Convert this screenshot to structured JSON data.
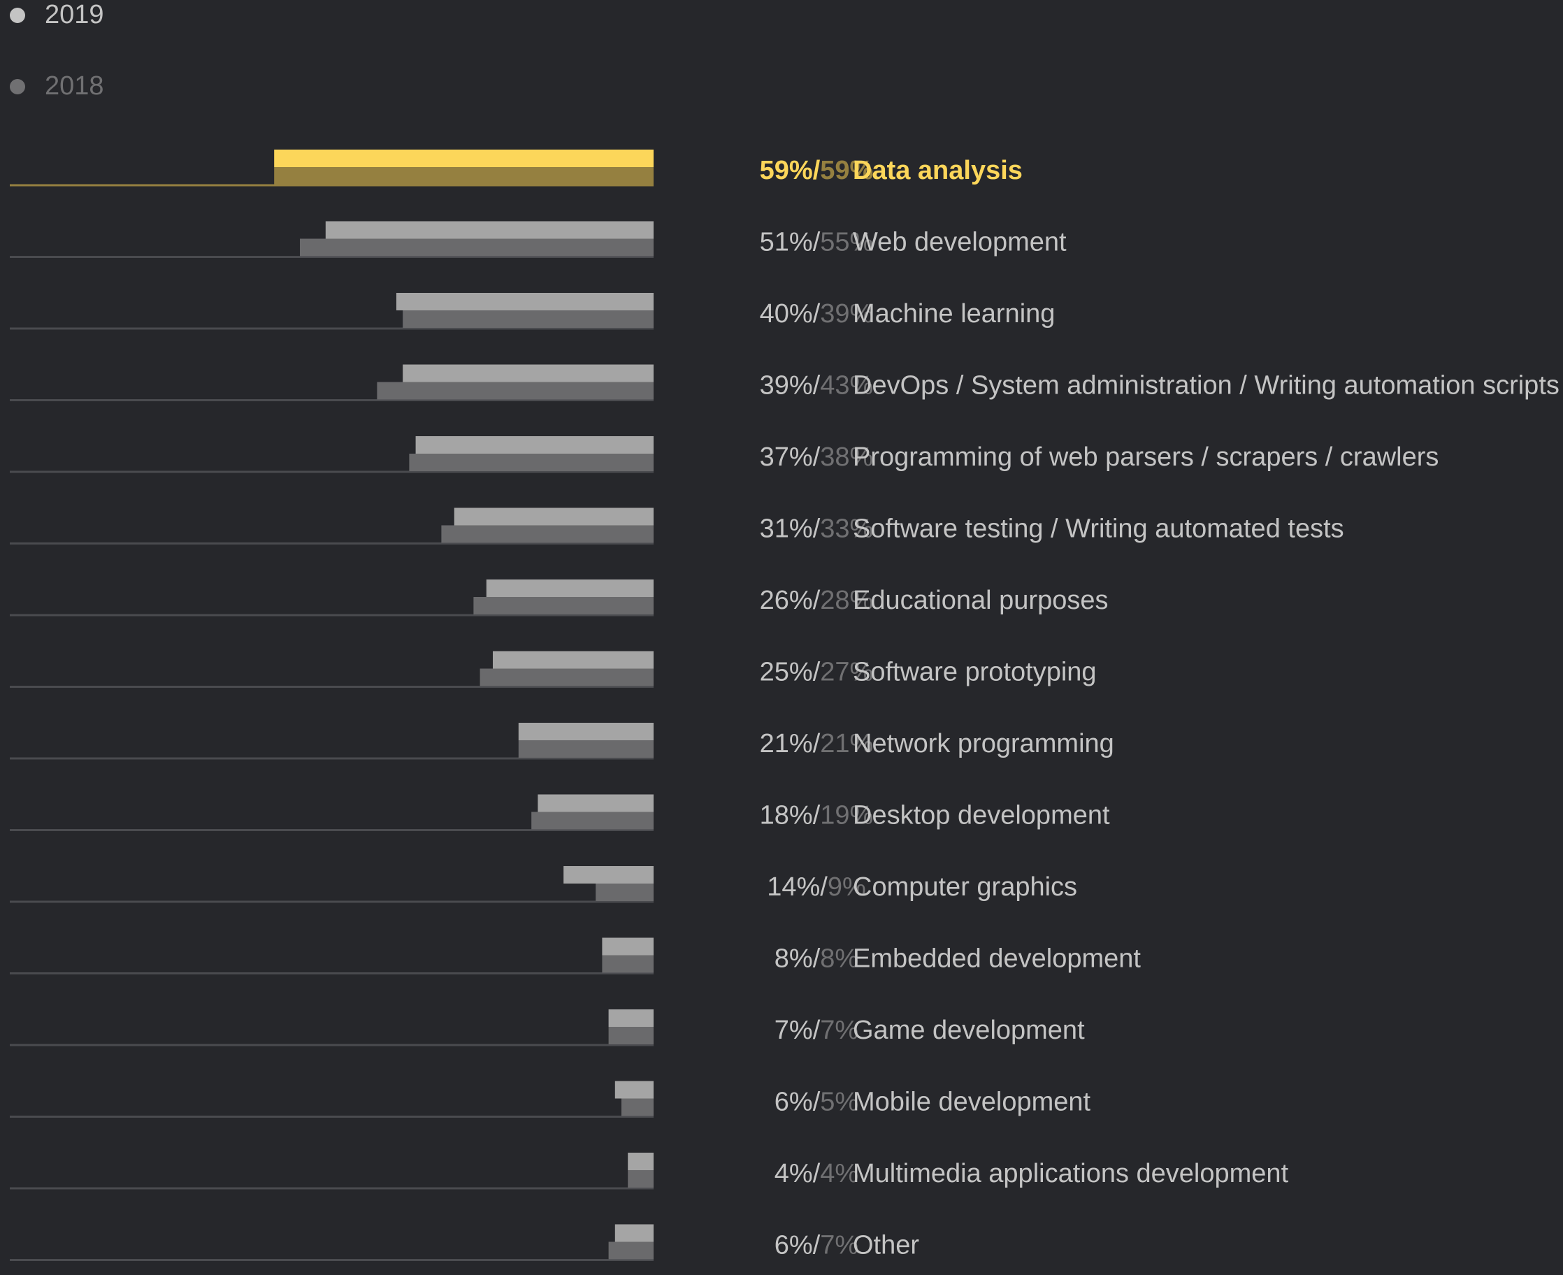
{
  "colors": {
    "background": "#26272b",
    "bar_2019": "#a5a5a5",
    "bar_2018": "#6a6a6c",
    "highlight_2019": "#fcd65a",
    "highlight_2018": "#958040",
    "text_2019": "#c4c4c4",
    "text_2018": "#707072",
    "baseline": "#4a4b4f",
    "legend_dot_2019": "#c4c4c4",
    "legend_dot_2018": "#707072"
  },
  "legend": {
    "items": [
      {
        "label": "2019"
      },
      {
        "label": "2018"
      }
    ]
  },
  "chart_data": {
    "type": "bar",
    "orientation": "horizontal",
    "bar_direction": "right-to-left",
    "xlim": [
      0,
      100
    ],
    "highlight_index": 0,
    "categories": [
      "Data analysis",
      "Web development",
      "Machine learning",
      "DevOps / System administration / Writing automation scripts",
      "Programming of web parsers / scrapers / crawlers",
      "Software testing / Writing automated tests",
      "Educational purposes",
      "Software prototyping",
      "Network programming",
      "Desktop development",
      "Computer graphics",
      "Embedded development",
      "Game development",
      "Mobile development",
      "Multimedia applications development",
      "Other"
    ],
    "series": [
      {
        "name": "2019",
        "values": [
          59,
          51,
          40,
          39,
          37,
          31,
          26,
          25,
          21,
          18,
          14,
          8,
          7,
          6,
          4,
          6
        ]
      },
      {
        "name": "2018",
        "values": [
          59,
          55,
          39,
          43,
          38,
          33,
          28,
          27,
          21,
          19,
          9,
          8,
          7,
          5,
          4,
          7
        ]
      }
    ],
    "value_labels_2019": [
      "59%/",
      "51%/",
      "40%/",
      "39%/",
      "37%/",
      "31%/",
      "26%/",
      "25%/",
      "21%/",
      "18%/",
      "14%/",
      "8%/",
      "7%/",
      "6%/",
      "4%/",
      "6%/"
    ],
    "value_labels_2018": [
      "59%",
      "55%",
      "39%",
      "43%",
      "38%",
      "33%",
      "28%",
      "27%",
      "21%",
      "19%",
      "9%",
      "8%",
      "7%",
      "5%",
      "4%",
      "7%"
    ]
  }
}
